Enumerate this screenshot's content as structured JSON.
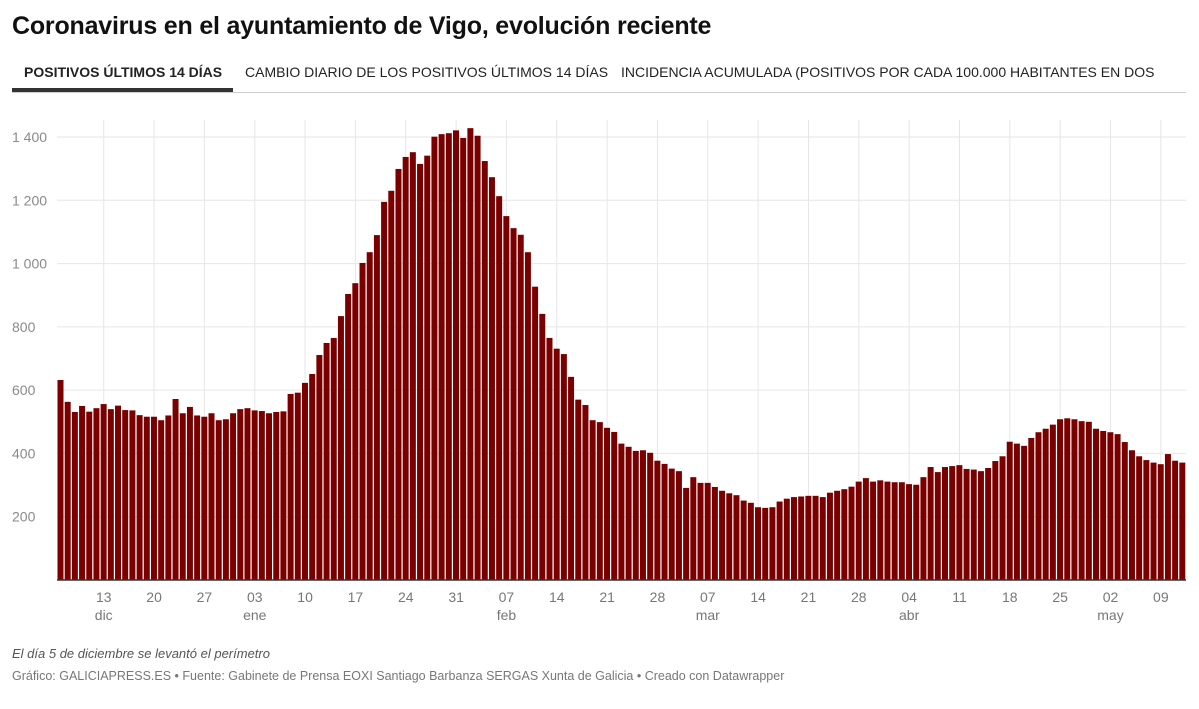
{
  "title": "Coronavirus en el ayuntamiento de Vigo, evolución reciente",
  "tabs": [
    {
      "label": "POSITIVOS ÚLTIMOS 14 DÍAS",
      "active": true
    },
    {
      "label": "CAMBIO DIARIO DE LOS POSITIVOS ÚLTIMOS 14 DÍAS",
      "active": false
    },
    {
      "label": "INCIDENCIA ACUMULADA (POSITIVOS POR CADA 100.000 HABITANTES EN DOS",
      "active": false
    }
  ],
  "note": "El día 5 de diciembre se levantó el perímetro",
  "credit": "Gráfico: GALICIAPRESS.ES • Fuente: Gabinete de Prensa EOXI Santiago Barbanza SERGAS Xunta de Galicia • Creado con Datawrapper",
  "chart_data": {
    "type": "bar",
    "bar_color": "#7a0000",
    "grid": true,
    "ylim": [
      0,
      1450
    ],
    "y_ticks": [
      {
        "value": 200,
        "label": "200"
      },
      {
        "value": 400,
        "label": "400"
      },
      {
        "value": 600,
        "label": "600"
      },
      {
        "value": 800,
        "label": "800"
      },
      {
        "value": 1000,
        "label": "1 000"
      },
      {
        "value": 1200,
        "label": "1 200"
      },
      {
        "value": 1400,
        "label": "1 400"
      }
    ],
    "x_ticks": [
      {
        "date": "dic 13",
        "label": "13",
        "month": "dic"
      },
      {
        "date": "dic 20",
        "label": "20",
        "month": ""
      },
      {
        "date": "dic 27",
        "label": "27",
        "month": ""
      },
      {
        "date": "ene 03",
        "label": "03",
        "month": "ene"
      },
      {
        "date": "ene 10",
        "label": "10",
        "month": ""
      },
      {
        "date": "ene 17",
        "label": "17",
        "month": ""
      },
      {
        "date": "ene 24",
        "label": "24",
        "month": ""
      },
      {
        "date": "ene 31",
        "label": "31",
        "month": ""
      },
      {
        "date": "feb 07",
        "label": "07",
        "month": "feb"
      },
      {
        "date": "feb 14",
        "label": "14",
        "month": ""
      },
      {
        "date": "feb 21",
        "label": "21",
        "month": ""
      },
      {
        "date": "feb 28",
        "label": "28",
        "month": ""
      },
      {
        "date": "mar 07",
        "label": "07",
        "month": "mar"
      },
      {
        "date": "mar 14",
        "label": "14",
        "month": ""
      },
      {
        "date": "mar 21",
        "label": "21",
        "month": ""
      },
      {
        "date": "mar 28",
        "label": "28",
        "month": ""
      },
      {
        "date": "abr 04",
        "label": "04",
        "month": "abr"
      },
      {
        "date": "abr 11",
        "label": "11",
        "month": ""
      },
      {
        "date": "abr 18",
        "label": "18",
        "month": ""
      },
      {
        "date": "abr 25",
        "label": "25",
        "month": ""
      },
      {
        "date": "may 02",
        "label": "02",
        "month": "may"
      },
      {
        "date": "may 09",
        "label": "09",
        "month": ""
      }
    ],
    "x": [
      "dic 07",
      "dic 08",
      "dic 09",
      "dic 10",
      "dic 11",
      "dic 12",
      "dic 13",
      "dic 14",
      "dic 15",
      "dic 16",
      "dic 17",
      "dic 18",
      "dic 19",
      "dic 20",
      "dic 21",
      "dic 22",
      "dic 23",
      "dic 24",
      "dic 25",
      "dic 26",
      "dic 27",
      "dic 28",
      "dic 29",
      "dic 30",
      "dic 31",
      "ene 01",
      "ene 02",
      "ene 03",
      "ene 04",
      "ene 05",
      "ene 06",
      "ene 07",
      "ene 08",
      "ene 09",
      "ene 10",
      "ene 11",
      "ene 12",
      "ene 13",
      "ene 14",
      "ene 15",
      "ene 16",
      "ene 17",
      "ene 18",
      "ene 19",
      "ene 20",
      "ene 21",
      "ene 22",
      "ene 23",
      "ene 24",
      "ene 25",
      "ene 26",
      "ene 27",
      "ene 28",
      "ene 29",
      "ene 30",
      "ene 31",
      "feb 01",
      "feb 02",
      "feb 03",
      "feb 04",
      "feb 05",
      "feb 06",
      "feb 07",
      "feb 08",
      "feb 09",
      "feb 10",
      "feb 11",
      "feb 12",
      "feb 13",
      "feb 14",
      "feb 15",
      "feb 16",
      "feb 17",
      "feb 18",
      "feb 19",
      "feb 20",
      "feb 21",
      "feb 22",
      "feb 23",
      "feb 24",
      "feb 25",
      "feb 26",
      "feb 27",
      "feb 28",
      "mar 01",
      "mar 02",
      "mar 03",
      "mar 04",
      "mar 05",
      "mar 06",
      "mar 07",
      "mar 08",
      "mar 09",
      "mar 10",
      "mar 11",
      "mar 12",
      "mar 13",
      "mar 14",
      "mar 15",
      "mar 16",
      "mar 17",
      "mar 18",
      "mar 19",
      "mar 20",
      "mar 21",
      "mar 22",
      "mar 23",
      "mar 24",
      "mar 25",
      "mar 26",
      "mar 27",
      "mar 28",
      "mar 29",
      "mar 30",
      "mar 31",
      "abr 01",
      "abr 02",
      "abr 03",
      "abr 04",
      "abr 05",
      "abr 06",
      "abr 07",
      "abr 08",
      "abr 09",
      "abr 10",
      "abr 11",
      "abr 12",
      "abr 13",
      "abr 14",
      "abr 15",
      "abr 16",
      "abr 17",
      "abr 18",
      "abr 19",
      "abr 20",
      "abr 21",
      "abr 22",
      "abr 23",
      "abr 24",
      "abr 25",
      "abr 26",
      "abr 27",
      "abr 28",
      "abr 29",
      "abr 30",
      "may 01",
      "may 02",
      "may 03",
      "may 04",
      "may 05",
      "may 06",
      "may 07",
      "may 08",
      "may 09",
      "may 10",
      "may 11",
      "may 12"
    ],
    "values": [
      632,
      563,
      531,
      550,
      532,
      543,
      556,
      540,
      551,
      537,
      536,
      521,
      516,
      516,
      505,
      520,
      572,
      527,
      547,
      520,
      516,
      527,
      505,
      508,
      527,
      540,
      543,
      536,
      534,
      527,
      531,
      533,
      588,
      592,
      623,
      651,
      711,
      749,
      765,
      834,
      904,
      938,
      1002,
      1036,
      1090,
      1195,
      1230,
      1299,
      1337,
      1352,
      1315,
      1341,
      1401,
      1409,
      1412,
      1421,
      1397,
      1428,
      1404,
      1324,
      1273,
      1213,
      1150,
      1112,
      1091,
      1036,
      927,
      841,
      765,
      731,
      714,
      642,
      570,
      553,
      505,
      499,
      481,
      468,
      431,
      421,
      408,
      410,
      402,
      377,
      367,
      352,
      344,
      291,
      325,
      307,
      307,
      294,
      282,
      274,
      268,
      251,
      244,
      230,
      228,
      230,
      248,
      257,
      262,
      264,
      266,
      266,
      262,
      276,
      282,
      287,
      295,
      311,
      322,
      311,
      315,
      311,
      309,
      309,
      303,
      301,
      325,
      357,
      341,
      357,
      360,
      363,
      351,
      349,
      344,
      354,
      376,
      391,
      437,
      431,
      424,
      449,
      467,
      478,
      491,
      508,
      511,
      508,
      502,
      500,
      478,
      471,
      467,
      461,
      436,
      410,
      391,
      379,
      371,
      366,
      398,
      377,
      371
    ]
  }
}
